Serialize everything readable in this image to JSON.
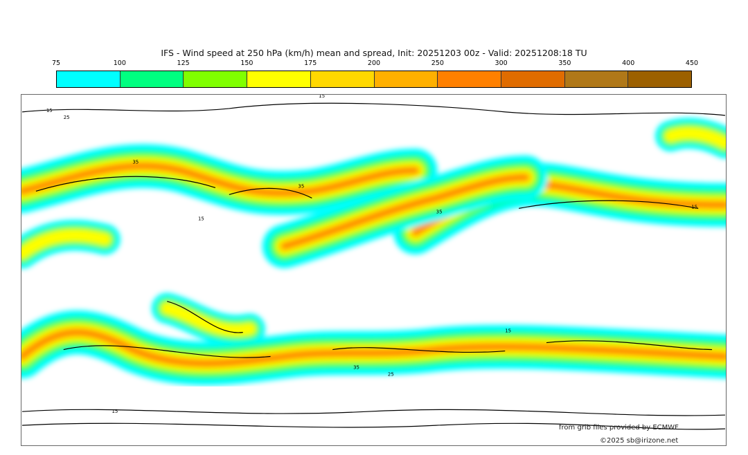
{
  "title": "IFS - Wind speed at 250 hPa (km/h) mean and spread, Init: 20251203 00z - Valid: 20251208:18 TU",
  "colorbar": {
    "ticks": [
      "75",
      "100",
      "125",
      "150",
      "175",
      "200",
      "250",
      "300",
      "350",
      "400",
      "450"
    ],
    "colors": [
      "#00ffff",
      "#00ff80",
      "#80ff00",
      "#ffff00",
      "#ffd800",
      "#ffb000",
      "#ff8000",
      "#e06c00",
      "#b07818",
      "#9c6000"
    ]
  },
  "contour_labels": [
    "15",
    "25",
    "35"
  ],
  "credits": {
    "source": "from grib files provided by ECMWF",
    "copyright": "©2025 sb@irizone.net"
  }
}
